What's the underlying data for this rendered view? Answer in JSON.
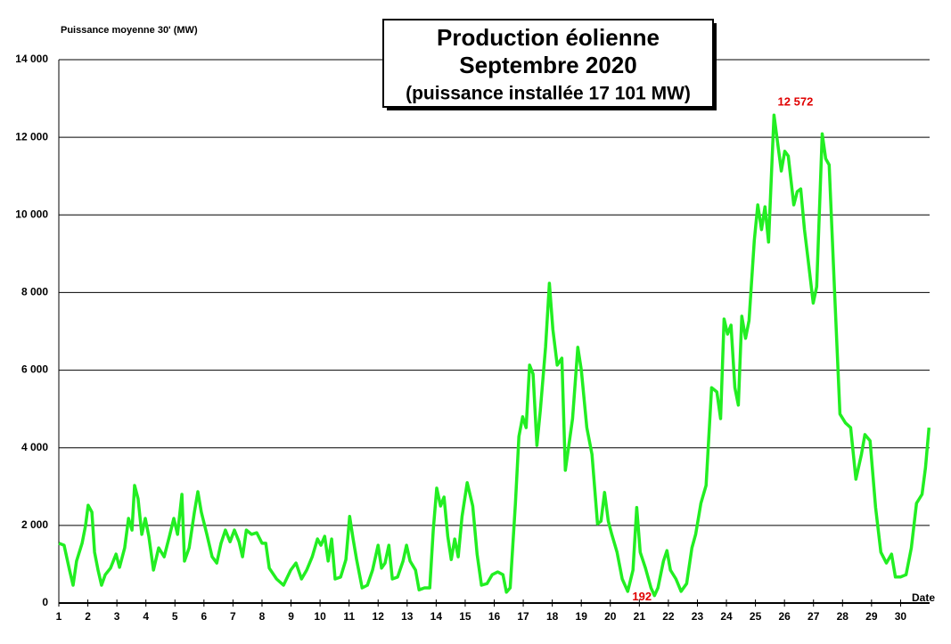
{
  "chart_data": {
    "type": "line",
    "title": [
      "Production éolienne",
      "Septembre 2020"
    ],
    "subtitle": "(puissance installée 17 101 MW)",
    "y_label": "Puissance moyenne 30'  (MW)",
    "x_label": "Date",
    "xlim": [
      1,
      31
    ],
    "xticks": [
      1,
      2,
      3,
      4,
      5,
      6,
      7,
      8,
      9,
      10,
      11,
      12,
      13,
      14,
      15,
      16,
      17,
      18,
      19,
      20,
      21,
      22,
      23,
      24,
      25,
      26,
      27,
      28,
      29,
      30
    ],
    "ylim": [
      0,
      14000
    ],
    "yticks": [
      0,
      {
        "value": 2000,
        "label": "2 000"
      },
      {
        "value": 4000,
        "label": "4 000"
      },
      {
        "value": 6000,
        "label": "6 000"
      },
      {
        "value": 8000,
        "label": "8 000"
      },
      {
        "value": 10000,
        "label": "10 000"
      },
      {
        "value": 12000,
        "label": "12 000"
      },
      {
        "value": 14000,
        "label": "14 000"
      }
    ],
    "grid": true,
    "annotations": [
      {
        "value": 12572,
        "label": "12 572",
        "color": "#e00000"
      },
      {
        "value": 192,
        "label": "192",
        "color": "#e00000"
      }
    ],
    "series": [
      {
        "color": "#22ee22",
        "x": [
          1.0,
          1.18,
          1.37,
          1.49,
          1.61,
          1.8,
          1.92,
          2.01,
          2.14,
          2.23,
          2.35,
          2.47,
          2.6,
          2.78,
          2.97,
          3.09,
          3.27,
          3.4,
          3.52,
          3.61,
          3.73,
          3.86,
          3.98,
          4.1,
          4.26,
          4.44,
          4.63,
          4.81,
          4.96,
          5.09,
          5.24,
          5.33,
          5.49,
          5.67,
          5.79,
          5.91,
          6.1,
          6.28,
          6.44,
          6.59,
          6.74,
          6.9,
          7.05,
          7.21,
          7.33,
          7.46,
          7.64,
          7.82,
          8.0,
          8.13,
          8.25,
          8.5,
          8.74,
          8.99,
          9.17,
          9.36,
          9.54,
          9.73,
          9.91,
          10.03,
          10.16,
          10.28,
          10.4,
          10.52,
          10.71,
          10.89,
          11.02,
          11.14,
          11.26,
          11.45,
          11.63,
          11.81,
          12.0,
          12.12,
          12.24,
          12.37,
          12.49,
          12.67,
          12.86,
          12.98,
          13.1,
          13.29,
          13.41,
          13.6,
          13.78,
          13.9,
          14.02,
          14.15,
          14.27,
          14.4,
          14.52,
          14.64,
          14.76,
          14.89,
          15.07,
          15.26,
          15.41,
          15.56,
          15.75,
          15.93,
          16.12,
          16.3,
          16.42,
          16.55,
          16.73,
          16.85,
          16.98,
          17.1,
          17.22,
          17.34,
          17.47,
          17.59,
          17.77,
          17.9,
          18.02,
          18.17,
          18.33,
          18.45,
          18.57,
          18.7,
          18.88,
          19.0,
          19.19,
          19.37,
          19.56,
          19.68,
          19.8,
          19.93,
          20.05,
          20.23,
          20.41,
          20.6,
          20.78,
          20.91,
          21.03,
          21.21,
          21.4,
          21.52,
          21.64,
          21.83,
          21.95,
          22.07,
          22.26,
          22.44,
          22.63,
          22.81,
          22.94,
          23.12,
          23.3,
          23.49,
          23.67,
          23.8,
          23.92,
          24.04,
          24.16,
          24.29,
          24.41,
          24.53,
          24.66,
          24.78,
          24.96,
          25.08,
          25.21,
          25.33,
          25.45,
          25.64,
          25.76,
          25.89,
          26.01,
          26.13,
          26.32,
          26.44,
          26.56,
          26.69,
          26.81,
          26.99,
          27.11,
          27.3,
          27.42,
          27.54,
          27.73,
          27.91,
          28.1,
          28.28,
          28.46,
          28.65,
          28.77,
          28.95,
          29.14,
          29.32,
          29.51,
          29.69,
          29.82,
          30.0,
          30.19,
          30.37,
          30.55,
          30.74,
          30.86,
          30.98
        ],
        "values": [
          1540,
          1490,
          850,
          460,
          1080,
          1540,
          2000,
          2520,
          2340,
          1310,
          850,
          460,
          730,
          900,
          1260,
          920,
          1420,
          2180,
          1880,
          3030,
          2690,
          1770,
          2180,
          1720,
          850,
          1420,
          1190,
          1720,
          2180,
          1770,
          2800,
          1080,
          1420,
          2340,
          2870,
          2340,
          1770,
          1190,
          1030,
          1540,
          1880,
          1580,
          1880,
          1580,
          1190,
          1880,
          1770,
          1810,
          1540,
          1540,
          900,
          620,
          460,
          850,
          1030,
          620,
          850,
          1190,
          1650,
          1490,
          1720,
          1080,
          1650,
          620,
          670,
          1120,
          2230,
          1650,
          1120,
          390,
          460,
          850,
          1490,
          900,
          1030,
          1490,
          620,
          670,
          1080,
          1490,
          1080,
          850,
          340,
          390,
          390,
          1880,
          2960,
          2500,
          2730,
          1720,
          1120,
          1650,
          1190,
          2230,
          3100,
          2500,
          1260,
          460,
          500,
          730,
          800,
          730,
          280,
          390,
          2570,
          4290,
          4800,
          4520,
          6130,
          5900,
          4060,
          4980,
          6590,
          8240,
          7050,
          6130,
          6310,
          3420,
          4060,
          4750,
          6590,
          6010,
          4520,
          3830,
          2040,
          2110,
          2850,
          2110,
          1770,
          1310,
          620,
          300,
          850,
          2460,
          1310,
          900,
          390,
          192,
          390,
          1080,
          1350,
          850,
          620,
          300,
          500,
          1420,
          1770,
          2570,
          3030,
          5550,
          5440,
          4750,
          7320,
          6930,
          7160,
          5550,
          5100,
          7390,
          6820,
          7280,
          9340,
          10260,
          9620,
          10210,
          9300,
          12572,
          11870,
          11130,
          11640,
          11520,
          10260,
          10600,
          10670,
          9620,
          8880,
          7730,
          8150,
          12090,
          11450,
          11290,
          7960,
          4870,
          4640,
          4520,
          3190,
          3830,
          4340,
          4180,
          2460,
          1310,
          1030,
          1260,
          670,
          670,
          730,
          1420,
          2570,
          2800,
          3490,
          4520
        ]
      }
    ]
  }
}
